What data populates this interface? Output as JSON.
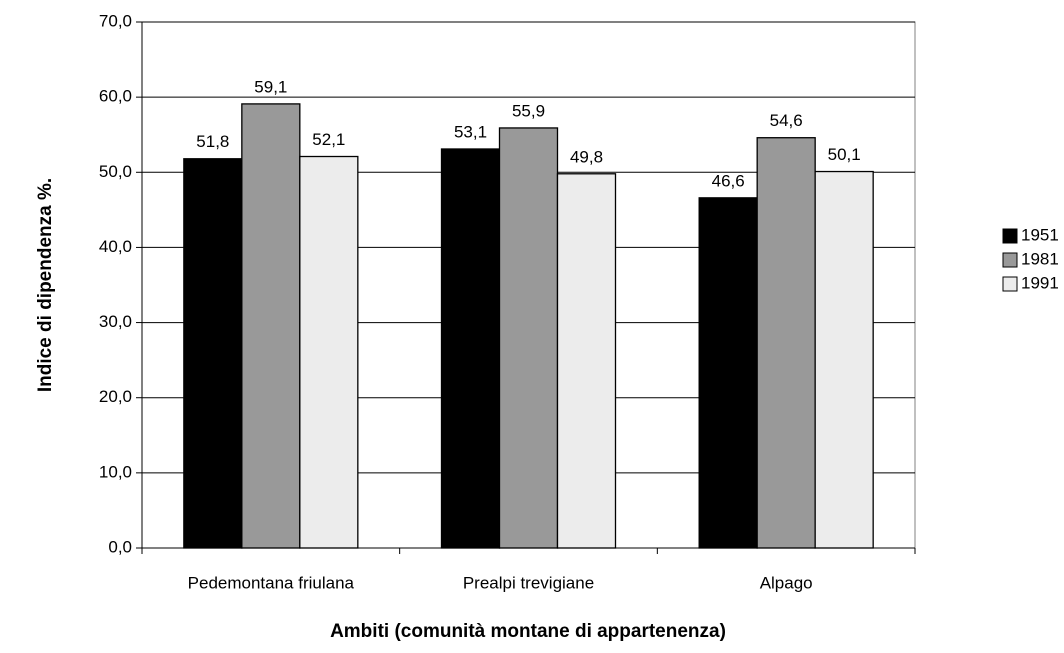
{
  "chart_data": {
    "type": "bar",
    "x_label": "Ambiti (comunità montane di appartenenza)",
    "y_label": "Indice di dipendenza %.",
    "categories": [
      "Pedemontana friulana",
      "Prealpi trevigiane",
      "Alpago"
    ],
    "series": [
      {
        "name": "1951",
        "color": "#000000",
        "values": [
          51.8,
          53.1,
          46.6
        ],
        "value_labels": [
          "51,8",
          "53,1",
          "46,6"
        ]
      },
      {
        "name": "1981",
        "color": "#999999",
        "values": [
          59.1,
          55.9,
          54.6
        ],
        "value_labels": [
          "59,1",
          "55,9",
          "54,6"
        ]
      },
      {
        "name": "1991",
        "color": "#ececec",
        "values": [
          52.1,
          49.8,
          50.1
        ],
        "value_labels": [
          "52,1",
          "49,8",
          "50,1"
        ]
      }
    ],
    "ylim": [
      0,
      70
    ],
    "yticks": [
      {
        "value": 0,
        "label": "0,0"
      },
      {
        "value": 10,
        "label": "10,0"
      },
      {
        "value": 20,
        "label": "20,0"
      },
      {
        "value": 30,
        "label": "30,0"
      },
      {
        "value": 40,
        "label": "40,0"
      },
      {
        "value": 50,
        "label": "50,0"
      },
      {
        "value": 60,
        "label": "60,0"
      },
      {
        "value": 70,
        "label": "70,0"
      }
    ],
    "grid": true,
    "legend": "right"
  }
}
